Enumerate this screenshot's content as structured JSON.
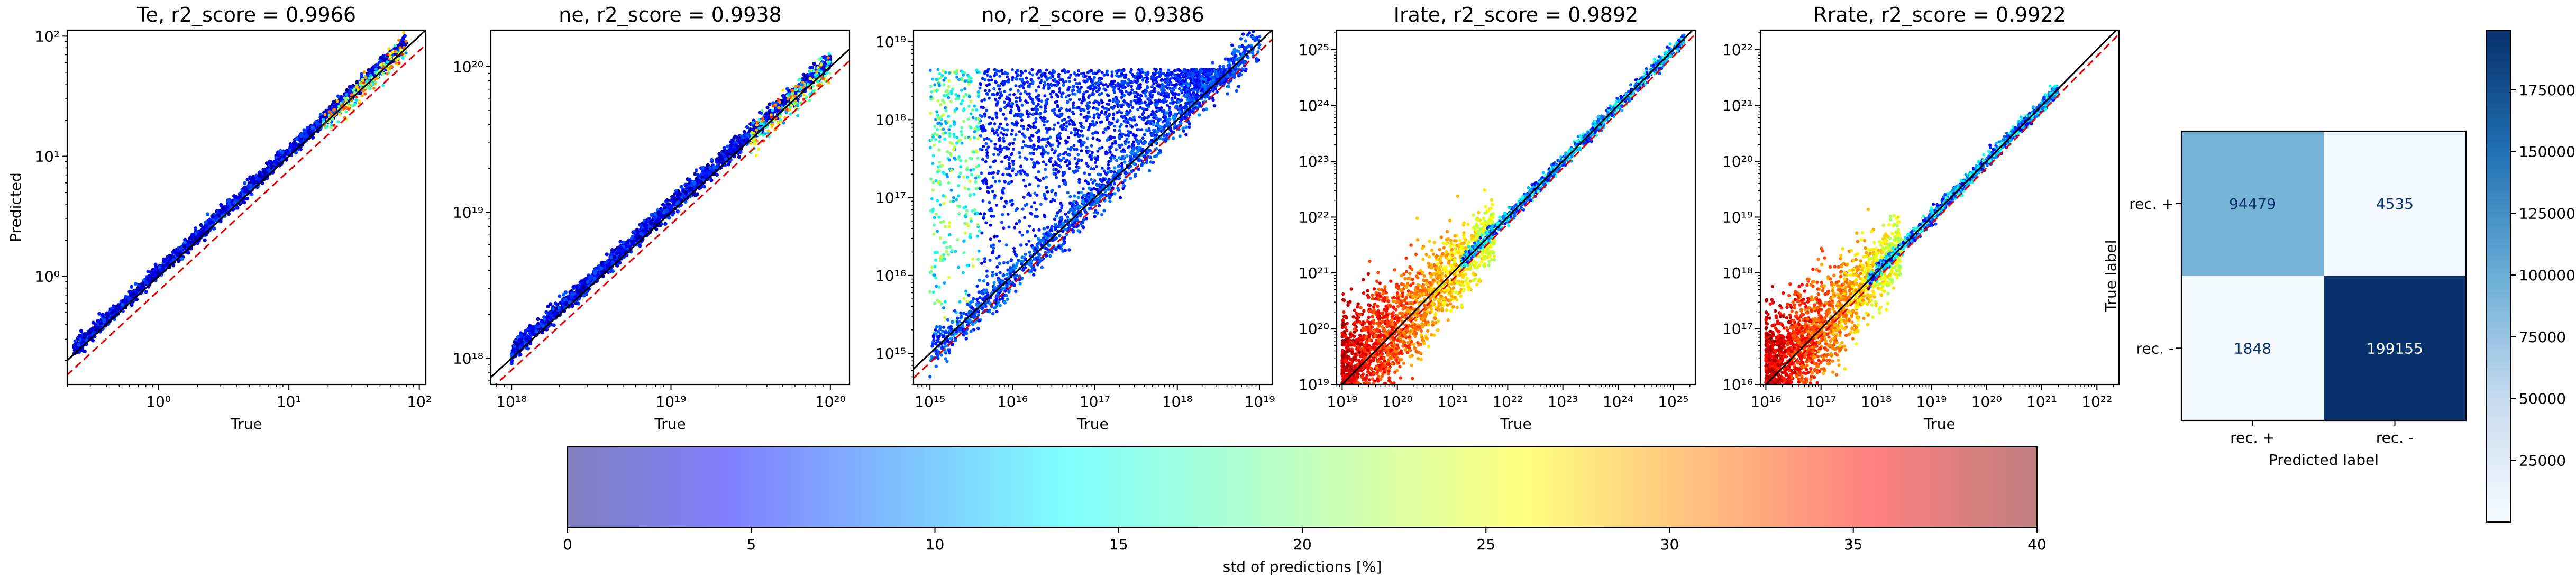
{
  "figure": {
    "scatter_colorbar_label": "std of predictions [%]",
    "scatter_colorbar_ticks": [
      "0",
      "5",
      "10",
      "15",
      "20",
      "25",
      "30",
      "35",
      "40"
    ],
    "scatter_colorbar_range": [
      0,
      40
    ],
    "cm_colorbar_ticks": [
      "25000",
      "50000",
      "75000",
      "100000",
      "125000",
      "150000",
      "175000"
    ],
    "cm_colorbar_range": [
      0,
      199155
    ]
  },
  "chart_data": [
    {
      "type": "scatter",
      "title": "Te, r2_score = 0.9966",
      "xlabel": "True",
      "ylabel": "Predicted",
      "xscale": "log",
      "yscale": "log",
      "xlim_exp": [
        -0.7,
        2.05
      ],
      "ylim_exp": [
        -0.9,
        2.05
      ],
      "xticks": [
        {
          "exp": 0,
          "label": "10⁰"
        },
        {
          "exp": 1,
          "label": "10¹"
        },
        {
          "exp": 2,
          "label": "10²"
        }
      ],
      "yticks": [
        {
          "exp": 0,
          "label": "10⁰"
        },
        {
          "exp": 1,
          "label": "10¹"
        },
        {
          "exp": 2,
          "label": "10²"
        }
      ],
      "data_range_exp": [
        -0.65,
        1.9
      ],
      "reference_lines": [
        "y = x (black)",
        "offset (red dashed)"
      ]
    },
    {
      "type": "scatter",
      "title": "ne, r2_score = 0.9938",
      "xlabel": "True",
      "ylabel": "",
      "xscale": "log",
      "yscale": "log",
      "xlim_exp": [
        17.87,
        20.12
      ],
      "ylim_exp": [
        17.82,
        20.25
      ],
      "xticks": [
        {
          "exp": 18,
          "label": "10¹⁸"
        },
        {
          "exp": 19,
          "label": "10¹⁹"
        },
        {
          "exp": 20,
          "label": "10²⁰"
        }
      ],
      "yticks": [
        {
          "exp": 18,
          "label": "10¹⁸"
        },
        {
          "exp": 19,
          "label": "10¹⁹"
        },
        {
          "exp": 20,
          "label": "10²⁰"
        }
      ],
      "data_range_exp": [
        18.0,
        20.0
      ],
      "reference_lines": [
        "y = x (black)",
        "offset (red dashed)"
      ]
    },
    {
      "type": "scatter",
      "title": "no, r2_score = 0.9386",
      "xlabel": "True",
      "ylabel": "",
      "xscale": "log",
      "yscale": "log",
      "xlim_exp": [
        14.8,
        19.15
      ],
      "ylim_exp": [
        14.6,
        19.15
      ],
      "xticks": [
        {
          "exp": 15,
          "label": "10¹⁵"
        },
        {
          "exp": 16,
          "label": "10¹⁶"
        },
        {
          "exp": 17,
          "label": "10¹⁷"
        },
        {
          "exp": 18,
          "label": "10¹⁸"
        },
        {
          "exp": 19,
          "label": "10¹⁹"
        }
      ],
      "yticks": [
        {
          "exp": 15,
          "label": "10¹⁵"
        },
        {
          "exp": 16,
          "label": "10¹⁶"
        },
        {
          "exp": 17,
          "label": "10¹⁷"
        },
        {
          "exp": 18,
          "label": "10¹⁸"
        },
        {
          "exp": 19,
          "label": "10¹⁹"
        }
      ],
      "data_range_exp": [
        15.0,
        19.0
      ],
      "reference_lines": [
        "y = x (black)",
        "offset (red dashed)"
      ]
    },
    {
      "type": "scatter",
      "title": "Irate, r2_score = 0.9892",
      "xlabel": "True",
      "ylabel": "",
      "xscale": "log",
      "yscale": "log",
      "xlim_exp": [
        18.9,
        25.4
      ],
      "ylim_exp": [
        19.0,
        25.35
      ],
      "xticks": [
        {
          "exp": 19,
          "label": "10¹⁹"
        },
        {
          "exp": 20,
          "label": "10²⁰"
        },
        {
          "exp": 21,
          "label": "10²¹"
        },
        {
          "exp": 22,
          "label": "10²²"
        },
        {
          "exp": 23,
          "label": "10²³"
        },
        {
          "exp": 24,
          "label": "10²⁴"
        },
        {
          "exp": 25,
          "label": "10²⁵"
        }
      ],
      "yticks": [
        {
          "exp": 19,
          "label": "10¹⁹"
        },
        {
          "exp": 20,
          "label": "10²⁰"
        },
        {
          "exp": 21,
          "label": "10²¹"
        },
        {
          "exp": 22,
          "label": "10²²"
        },
        {
          "exp": 23,
          "label": "10²³"
        },
        {
          "exp": 24,
          "label": "10²⁴"
        },
        {
          "exp": 25,
          "label": "10²⁵"
        }
      ],
      "data_range_exp": [
        19.0,
        25.2
      ],
      "reference_lines": [
        "y = x (black)",
        "offset (red dashed)"
      ]
    },
    {
      "type": "scatter",
      "title": "Rrate, r2_score = 0.9922",
      "xlabel": "True",
      "ylabel": "",
      "xscale": "log",
      "yscale": "log",
      "xlim_exp": [
        15.9,
        22.4
      ],
      "ylim_exp": [
        16.0,
        22.35
      ],
      "xticks": [
        {
          "exp": 16,
          "label": "10¹⁶"
        },
        {
          "exp": 17,
          "label": "10¹⁷"
        },
        {
          "exp": 18,
          "label": "10¹⁸"
        },
        {
          "exp": 19,
          "label": "10¹⁹"
        },
        {
          "exp": 20,
          "label": "10²⁰"
        },
        {
          "exp": 21,
          "label": "10²¹"
        },
        {
          "exp": 22,
          "label": "10²²"
        }
      ],
      "yticks": [
        {
          "exp": 16,
          "label": "10¹⁶"
        },
        {
          "exp": 17,
          "label": "10¹⁷"
        },
        {
          "exp": 18,
          "label": "10¹⁸"
        },
        {
          "exp": 19,
          "label": "10¹⁹"
        },
        {
          "exp": 20,
          "label": "10²⁰"
        },
        {
          "exp": 21,
          "label": "10²¹"
        },
        {
          "exp": 22,
          "label": "10²²"
        }
      ],
      "data_range_exp": [
        16.0,
        21.3
      ],
      "reference_lines": [
        "y = x (black)",
        "offset (red dashed)"
      ]
    },
    {
      "type": "heatmap",
      "subtype": "confusion_matrix",
      "xlabel": "Predicted label",
      "ylabel": "True label",
      "x_categories": [
        "rec. +",
        "rec. -"
      ],
      "y_categories": [
        "rec. +",
        "rec. -"
      ],
      "values": [
        [
          94479,
          4535
        ],
        [
          1848,
          199155
        ]
      ],
      "colormap": "Blues"
    }
  ]
}
